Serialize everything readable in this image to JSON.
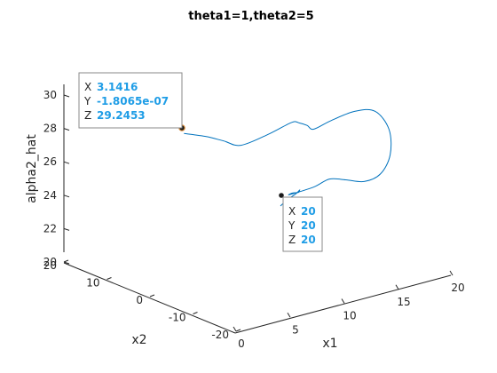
{
  "chart_data": {
    "type": "line",
    "title": "theta1=1,theta2=5",
    "xlabel": "x1",
    "ylabel": "x2",
    "zlabel": "alpha2_hat",
    "xlim": [
      0,
      20
    ],
    "ylim": [
      -20,
      20
    ],
    "zlim": [
      20,
      30
    ],
    "xticks": [
      "0",
      "5",
      "10",
      "15",
      "20"
    ],
    "yticks": [
      "-20",
      "-10",
      "0",
      "10",
      "20"
    ],
    "zticks": [
      "20",
      "22",
      "24",
      "26",
      "28",
      "30"
    ],
    "grid": false,
    "series": [
      {
        "x": [
          3.1416,
          5,
          7,
          9,
          11,
          12.5,
          14,
          15.5,
          16.5,
          17.5,
          18.5,
          19.2,
          19.3,
          18.6,
          17.5,
          16,
          14.5,
          13,
          12,
          11.2,
          12,
          13.2,
          14.5,
          15.8,
          17,
          18,
          19,
          19.5,
          20
        ],
        "y": [
          0,
          -0.5,
          0.5,
          1.5,
          0,
          -1.5,
          0.5,
          2.5,
          3.5,
          2,
          -1,
          -4,
          -7,
          -9,
          -9.5,
          -9.5,
          -9,
          -9,
          -8,
          -5,
          -2,
          0,
          2,
          5,
          8,
          11,
          14,
          17,
          20
        ],
        "z": [
          29.2453,
          28.8,
          28.1,
          27.4,
          27.9,
          28.5,
          28.0,
          27.4,
          26.9,
          27.4,
          28.1,
          28.3,
          27.5,
          26.3,
          25.4,
          25.2,
          25.5,
          25.8,
          25.4,
          24.8,
          24.3,
          24.0,
          23.6,
          23.2,
          22.7,
          22.1,
          21.5,
          20.8,
          20
        ]
      }
    ]
  },
  "datatips": [
    {
      "rows": [
        {
          "key": "X",
          "value": "3.1416"
        },
        {
          "key": "Y",
          "value": "-1.8065e-07"
        },
        {
          "key": "Z",
          "value": "29.2453"
        }
      ]
    },
    {
      "rows": [
        {
          "key": "X",
          "value": "20"
        },
        {
          "key": "Y",
          "value": "20"
        },
        {
          "key": "Z",
          "value": "20"
        }
      ]
    }
  ]
}
